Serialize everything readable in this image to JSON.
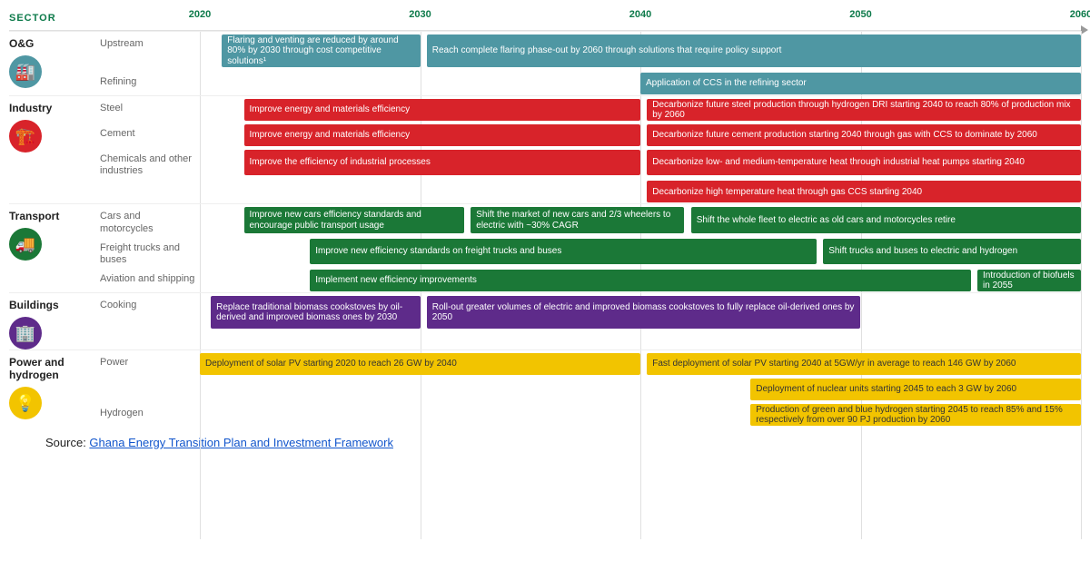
{
  "timeline": {
    "header_label": "SECTOR",
    "start_year": 2020,
    "end_year": 2060,
    "years": [
      2020,
      2030,
      2040,
      2050,
      2060
    ],
    "grid_color": "#e0e0e0",
    "axis_color": "#bbbbbb"
  },
  "colors": {
    "og": "#4f97a3",
    "industry": "#d8232a",
    "transport": "#1b7837",
    "buildings": "#5e2b8a",
    "power": "#f2c400",
    "sector_header": "#0d7a4a"
  },
  "sectors": [
    {
      "name": "O&G",
      "icon": "🏭",
      "color_key": "og",
      "subcats": [
        {
          "name": "Upstream",
          "tall": true,
          "bars": [
            {
              "start": 2021,
              "end": 2030,
              "label": "Flaring and venting are reduced by around 80% by 2030 through cost competitive solutions¹"
            },
            {
              "start": 2030.3,
              "end": 2060,
              "label": "Reach complete flaring phase-out by 2060 through solutions that require policy support"
            }
          ]
        },
        {
          "name": "Refining",
          "bars": [
            {
              "start": 2040,
              "end": 2060,
              "label": "Application of CCS in the refining sector"
            }
          ]
        }
      ]
    },
    {
      "name": "Industry",
      "icon": "🏗️",
      "color_key": "industry",
      "subcats": [
        {
          "name": "Steel",
          "bars": [
            {
              "start": 2022,
              "end": 2040,
              "label": "Improve energy and materials efficiency"
            },
            {
              "start": 2040.3,
              "end": 2060,
              "label": "Decarbonize future steel production through hydrogen DRI starting 2040 to reach 80% of production mix by 2060"
            }
          ]
        },
        {
          "name": "Cement",
          "bars": [
            {
              "start": 2022,
              "end": 2040,
              "label": "Improve energy and materials efficiency"
            },
            {
              "start": 2040.3,
              "end": 2060,
              "label": "Decarbonize future cement production starting 2040 through gas with CCS to dominate by 2060"
            }
          ]
        },
        {
          "name": "Chemicals and other industries",
          "bars": [
            {
              "start": 2022,
              "end": 2040,
              "label": "Improve the efficiency of industrial processes"
            },
            {
              "start": 2040.3,
              "end": 2060,
              "label": "Decarbonize low- and medium-temperature heat through industrial heat pumps starting 2040"
            }
          ]
        },
        {
          "name": "",
          "bars": [
            {
              "start": 2040.3,
              "end": 2060,
              "label": "Decarbonize high temperature heat through gas CCS starting 2040"
            }
          ]
        }
      ]
    },
    {
      "name": "Transport",
      "icon": "🚚",
      "color_key": "transport",
      "subcats": [
        {
          "name": "Cars and motorcycles",
          "bars": [
            {
              "start": 2022,
              "end": 2032,
              "label": "Improve new cars efficiency standards and encourage public transport usage"
            },
            {
              "start": 2032.3,
              "end": 2042,
              "label": "Shift the market of new cars and 2/3 wheelers to electric with ~30% CAGR"
            },
            {
              "start": 2042.3,
              "end": 2060,
              "label": "Shift the whole fleet to electric as old cars and motorcycles retire"
            }
          ]
        },
        {
          "name": "Freight trucks and buses",
          "bars": [
            {
              "start": 2025,
              "end": 2048,
              "label": "Improve new efficiency standards on freight trucks and buses"
            },
            {
              "start": 2048.3,
              "end": 2060,
              "label": "Shift trucks and buses to electric and hydrogen"
            }
          ]
        },
        {
          "name": "Aviation and shipping",
          "bars": [
            {
              "start": 2025,
              "end": 2055,
              "label": "Implement new efficiency improvements"
            },
            {
              "start": 2055.3,
              "end": 2060,
              "label": "Introduction of biofuels in 2055"
            }
          ]
        }
      ]
    },
    {
      "name": "Buildings",
      "icon": "🏢",
      "color_key": "buildings",
      "subcats": [
        {
          "name": "Cooking",
          "tall": true,
          "bars": [
            {
              "start": 2020.5,
              "end": 2030,
              "label": "Replace traditional biomass cookstoves by oil-derived and improved biomass ones by 2030"
            },
            {
              "start": 2030.3,
              "end": 2050,
              "label": "Roll-out greater volumes of electric and improved biomass cookstoves to fully replace oil-derived ones by 2050"
            }
          ]
        }
      ]
    },
    {
      "name": "Power and hydrogen",
      "icon": "💡",
      "color_key": "power",
      "dark_text": true,
      "subcats": [
        {
          "name": "Power",
          "bars": [
            {
              "start": 2020,
              "end": 2040,
              "label": "Deployment of solar PV starting 2020 to reach 26 GW by 2040"
            },
            {
              "start": 2040.3,
              "end": 2060,
              "label": "Fast deployment of solar PV starting 2040 at 5GW/yr in average to reach 146 GW by 2060"
            }
          ]
        },
        {
          "name": "",
          "bars": [
            {
              "start": 2045,
              "end": 2060,
              "label": "Deployment of nuclear units starting 2045 to each 3 GW by 2060"
            }
          ]
        },
        {
          "name": "Hydrogen",
          "bars": [
            {
              "start": 2045,
              "end": 2060,
              "label": "Production of green and blue hydrogen starting 2045 to reach 85% and 15% respectively from over 90 PJ production by 2060"
            }
          ]
        }
      ]
    }
  ],
  "source": {
    "prefix": "Source: ",
    "link_text": "Ghana Energy Transition Plan and Investment Framework"
  }
}
